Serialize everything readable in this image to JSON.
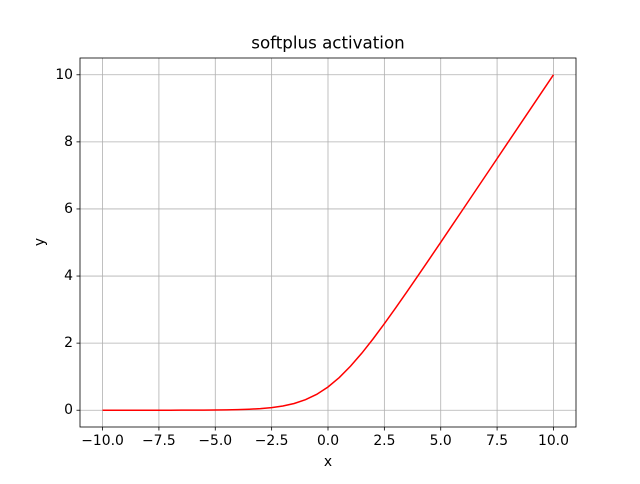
{
  "chart_data": {
    "type": "line",
    "title": "softplus activation",
    "x_label": "x",
    "y_label": "y",
    "x": [
      -10,
      -9.5,
      -9,
      -8.5,
      -8,
      -7.5,
      -7,
      -6.5,
      -6,
      -5.5,
      -5,
      -4.5,
      -4,
      -3.5,
      -3,
      -2.5,
      -2,
      -1.5,
      -1,
      -0.5,
      0,
      0.5,
      1,
      1.5,
      2,
      2.5,
      3,
      3.5,
      4,
      4.5,
      5,
      5.5,
      6,
      6.5,
      7,
      7.5,
      8,
      8.5,
      9,
      9.5,
      10
    ],
    "series": [
      {
        "color": "#ff0000",
        "values": [
          5e-05,
          7e-05,
          0.00012,
          0.0002,
          0.00034,
          0.00055,
          0.00091,
          0.0015,
          0.00248,
          0.00408,
          0.00672,
          0.01105,
          0.01815,
          0.02975,
          0.04859,
          0.07889,
          0.12693,
          0.20141,
          0.31326,
          0.47408,
          0.69315,
          0.97408,
          1.31326,
          1.70141,
          2.12693,
          2.57889,
          3.04859,
          3.52975,
          4.01815,
          4.51105,
          5.00672,
          5.50408,
          6.00248,
          6.5015,
          7.00091,
          7.50055,
          8.00034,
          8.5002,
          9.00012,
          9.50007,
          10.00005
        ]
      }
    ],
    "xlim": [
      -11,
      11
    ],
    "ylim": [
      -0.5,
      10.5
    ],
    "xticks": [
      {
        "value": -10,
        "label": "−10.0"
      },
      {
        "value": -7.5,
        "label": "−7.5"
      },
      {
        "value": -5,
        "label": "−5.0"
      },
      {
        "value": -2.5,
        "label": "−2.5"
      },
      {
        "value": 0,
        "label": "0.0"
      },
      {
        "value": 2.5,
        "label": "2.5"
      },
      {
        "value": 5,
        "label": "5.0"
      },
      {
        "value": 7.5,
        "label": "7.5"
      },
      {
        "value": 10,
        "label": "10.0"
      }
    ],
    "yticks": [
      0,
      2,
      4,
      6,
      8,
      10
    ],
    "grid": true
  }
}
